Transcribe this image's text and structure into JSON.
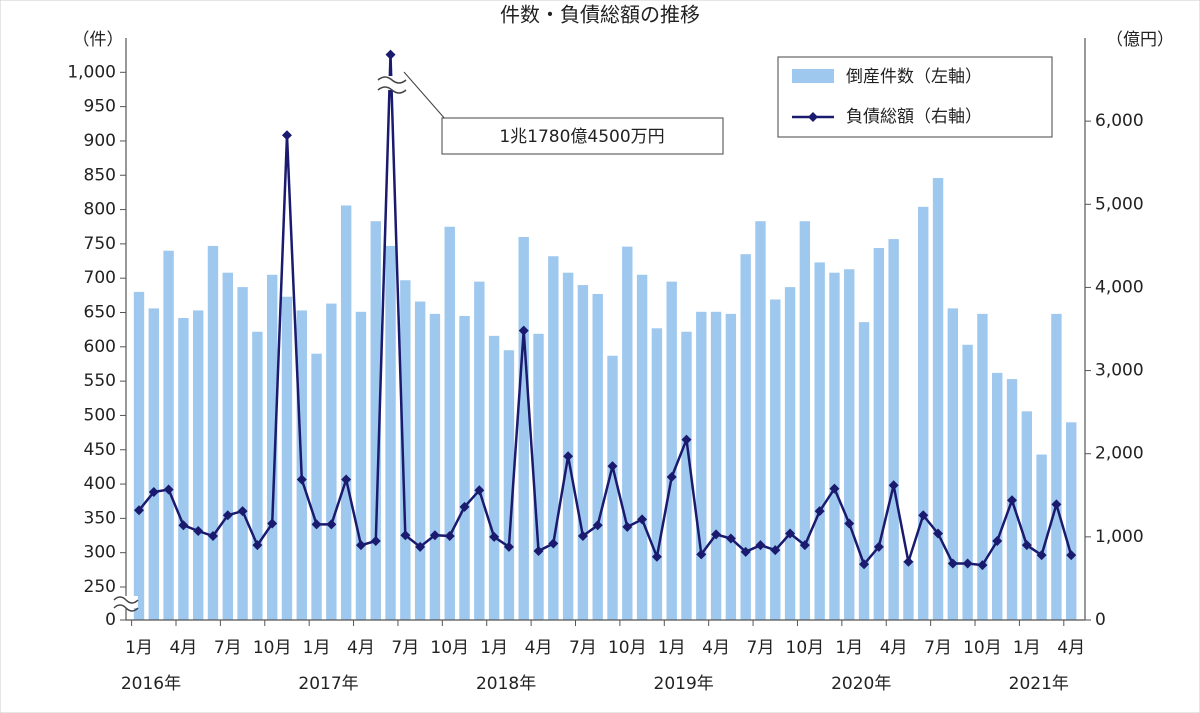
{
  "chart_data": {
    "type": "bar_line",
    "title": "件数・負債総額の推移",
    "ylabel": "（件）",
    "y2label": "（億円）",
    "categories": [
      "1月",
      null,
      null,
      "4月",
      null,
      null,
      "7月",
      null,
      null,
      "10月",
      null,
      null,
      "1月",
      null,
      null,
      "4月",
      null,
      null,
      "7月",
      null,
      null,
      "10月",
      null,
      null,
      "1月",
      null,
      null,
      "4月",
      null,
      null,
      "7月",
      null,
      null,
      "10月",
      null,
      null,
      "1月",
      null,
      null,
      "4月",
      null,
      null,
      "7月",
      null,
      null,
      "10月",
      null,
      null,
      "1月",
      null,
      null,
      "4月",
      null,
      null,
      "7月",
      null,
      null,
      "10月",
      null,
      null,
      "1月",
      null,
      null,
      "4月"
    ],
    "year_labels": [
      "2016年",
      "2017年",
      "2018年",
      "2019年",
      "2020年",
      "2021年"
    ],
    "series": [
      {
        "name": "倒産件数（左軸）",
        "kind": "bar",
        "color": "#9fc8ee",
        "values": [
          680,
          656,
          740,
          642,
          653,
          747,
          708,
          687,
          622,
          705,
          673,
          653,
          590,
          663,
          806,
          651,
          783,
          747,
          697,
          666,
          648,
          775,
          645,
          695,
          616,
          595,
          760,
          619,
          732,
          708,
          690,
          677,
          587,
          746,
          705,
          627,
          695,
          622,
          651,
          651,
          648,
          735,
          783,
          669,
          687,
          783,
          723,
          708,
          713,
          636,
          744,
          757,
          288,
          804,
          846,
          656,
          603,
          648,
          562,
          553,
          506,
          443,
          648,
          490
        ]
      },
      {
        "name": "負債総額（右軸）",
        "kind": "line",
        "axis": "y2",
        "color": "#1a1a6e",
        "values": [
          1320,
          1540,
          1570,
          1140,
          1070,
          1010,
          1260,
          1310,
          900,
          1160,
          5830,
          1690,
          1150,
          1150,
          1690,
          900,
          950,
          11780,
          1020,
          880,
          1020,
          1010,
          1360,
          1560,
          1000,
          880,
          3480,
          830,
          920,
          1970,
          1010,
          1140,
          1850,
          1120,
          1210,
          760,
          1720,
          2170,
          790,
          1030,
          980,
          820,
          900,
          840,
          1040,
          900,
          1310,
          1580,
          1160,
          670,
          880,
          1620,
          700,
          1260,
          1040,
          680,
          680,
          660,
          950,
          1440,
          900,
          780,
          1390,
          780
        ]
      }
    ],
    "annotation": "1兆1780億4500万円",
    "ylim": [
      0,
      1050
    ],
    "axis_break": [
      0,
      250
    ],
    "yticks": [
      0,
      250,
      300,
      350,
      400,
      450,
      500,
      550,
      600,
      650,
      700,
      750,
      800,
      850,
      900,
      950,
      {
        "value": 1000,
        "label": "1,000"
      }
    ],
    "y2lim": [
      0,
      7000
    ],
    "y2_break": [
      6400,
      11780
    ],
    "y2ticks": [
      0,
      {
        "value": 1000,
        "label": "1,000"
      },
      {
        "value": 2000,
        "label": "2,000"
      },
      {
        "value": 3000,
        "label": "3,000"
      },
      {
        "value": 4000,
        "label": "4,000"
      },
      {
        "value": 5000,
        "label": "5,000"
      },
      {
        "value": 6000,
        "label": "6,000"
      }
    ],
    "legend": "upper right"
  }
}
